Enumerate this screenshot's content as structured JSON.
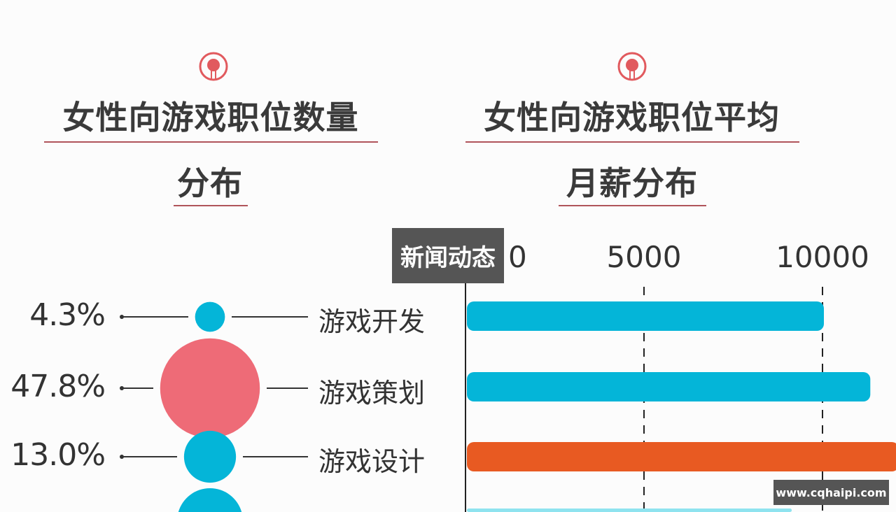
{
  "left_panel": {
    "title_line1": "女性向游戏职位数量",
    "title_line2": "分布"
  },
  "right_panel": {
    "title_line1": "女性向游戏职位平均",
    "title_line2": "月薪分布"
  },
  "overlay_label": "新闻动态",
  "watermark": "www.cqhaipi.com",
  "colors": {
    "cyan": "#04b5d8",
    "pink": "#ee6b77",
    "orange": "#e85a22",
    "light_cyan": "#8fe3ef",
    "accent_line": "#b0545a"
  },
  "chart_data": [
    {
      "type": "bubble",
      "title": "女性向游戏职位数量分布",
      "categories": [
        "游戏开发",
        "游戏策划",
        "游戏设计"
      ],
      "values_label": [
        "4.3%",
        "47.8%",
        "13.0%"
      ],
      "values": [
        4.3,
        47.8,
        13.0
      ],
      "colors": [
        "#04b5d8",
        "#ee6b77",
        "#04b5d8"
      ]
    },
    {
      "type": "bar",
      "orientation": "horizontal",
      "title": "女性向游戏职位平均月薪分布",
      "x_ticks": [
        "0",
        "5000",
        "10000"
      ],
      "xlim": [
        0,
        12500
      ],
      "categories": [
        "游戏开发",
        "游戏策划",
        "游戏设计",
        ""
      ],
      "values": [
        10000,
        11300,
        12100,
        9100
      ],
      "colors": [
        "#04b5d8",
        "#04b5d8",
        "#e85a22",
        "#8fe3ef"
      ],
      "grid": "dashed vertical at ticks"
    }
  ]
}
